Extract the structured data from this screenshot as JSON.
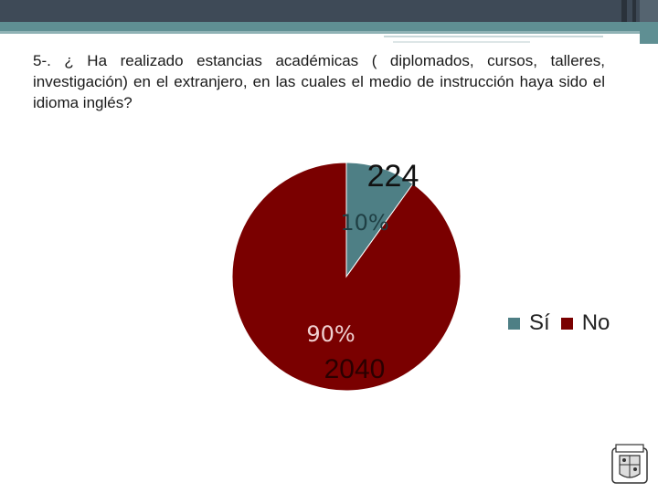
{
  "slide": {
    "question": "5-. ¿ Ha realizado estancias académicas ( diplomados, cursos, talleres, investigación) en el extranjero, en las cuales el medio de instrucción haya sido el idioma inglés?"
  },
  "chart_data": {
    "type": "pie",
    "title": "",
    "slices": [
      {
        "label": "Sí",
        "value": 224,
        "percent_label": "10%",
        "color": "#4e7f85"
      },
      {
        "label": "No",
        "value": 2040,
        "percent_label": "90%",
        "color": "#7a0000"
      }
    ],
    "legend_position": "right",
    "legend": [
      "Sí",
      "No"
    ]
  },
  "logo": {
    "name": "university-crest-icon"
  }
}
